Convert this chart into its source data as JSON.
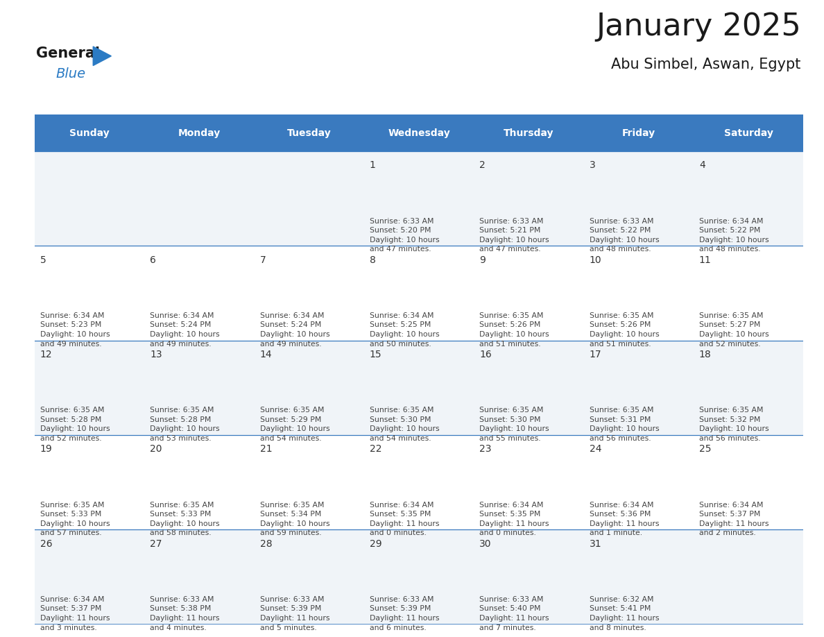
{
  "title": "January 2025",
  "subtitle": "Abu Simbel, Aswan, Egypt",
  "header_bg": "#3a7abf",
  "header_text": "#ffffff",
  "days_of_week": [
    "Sunday",
    "Monday",
    "Tuesday",
    "Wednesday",
    "Thursday",
    "Friday",
    "Saturday"
  ],
  "cell_bg_odd": "#f0f4f8",
  "cell_bg_even": "#ffffff",
  "border_color": "#3a7abf",
  "text_color": "#444444",
  "num_color": "#333333",
  "calendar": [
    [
      {
        "day": null,
        "info": null
      },
      {
        "day": null,
        "info": null
      },
      {
        "day": null,
        "info": null
      },
      {
        "day": 1,
        "info": "Sunrise: 6:33 AM\nSunset: 5:20 PM\nDaylight: 10 hours\nand 47 minutes."
      },
      {
        "day": 2,
        "info": "Sunrise: 6:33 AM\nSunset: 5:21 PM\nDaylight: 10 hours\nand 47 minutes."
      },
      {
        "day": 3,
        "info": "Sunrise: 6:33 AM\nSunset: 5:22 PM\nDaylight: 10 hours\nand 48 minutes."
      },
      {
        "day": 4,
        "info": "Sunrise: 6:34 AM\nSunset: 5:22 PM\nDaylight: 10 hours\nand 48 minutes."
      }
    ],
    [
      {
        "day": 5,
        "info": "Sunrise: 6:34 AM\nSunset: 5:23 PM\nDaylight: 10 hours\nand 49 minutes."
      },
      {
        "day": 6,
        "info": "Sunrise: 6:34 AM\nSunset: 5:24 PM\nDaylight: 10 hours\nand 49 minutes."
      },
      {
        "day": 7,
        "info": "Sunrise: 6:34 AM\nSunset: 5:24 PM\nDaylight: 10 hours\nand 49 minutes."
      },
      {
        "day": 8,
        "info": "Sunrise: 6:34 AM\nSunset: 5:25 PM\nDaylight: 10 hours\nand 50 minutes."
      },
      {
        "day": 9,
        "info": "Sunrise: 6:35 AM\nSunset: 5:26 PM\nDaylight: 10 hours\nand 51 minutes."
      },
      {
        "day": 10,
        "info": "Sunrise: 6:35 AM\nSunset: 5:26 PM\nDaylight: 10 hours\nand 51 minutes."
      },
      {
        "day": 11,
        "info": "Sunrise: 6:35 AM\nSunset: 5:27 PM\nDaylight: 10 hours\nand 52 minutes."
      }
    ],
    [
      {
        "day": 12,
        "info": "Sunrise: 6:35 AM\nSunset: 5:28 PM\nDaylight: 10 hours\nand 52 minutes."
      },
      {
        "day": 13,
        "info": "Sunrise: 6:35 AM\nSunset: 5:28 PM\nDaylight: 10 hours\nand 53 minutes."
      },
      {
        "day": 14,
        "info": "Sunrise: 6:35 AM\nSunset: 5:29 PM\nDaylight: 10 hours\nand 54 minutes."
      },
      {
        "day": 15,
        "info": "Sunrise: 6:35 AM\nSunset: 5:30 PM\nDaylight: 10 hours\nand 54 minutes."
      },
      {
        "day": 16,
        "info": "Sunrise: 6:35 AM\nSunset: 5:30 PM\nDaylight: 10 hours\nand 55 minutes."
      },
      {
        "day": 17,
        "info": "Sunrise: 6:35 AM\nSunset: 5:31 PM\nDaylight: 10 hours\nand 56 minutes."
      },
      {
        "day": 18,
        "info": "Sunrise: 6:35 AM\nSunset: 5:32 PM\nDaylight: 10 hours\nand 56 minutes."
      }
    ],
    [
      {
        "day": 19,
        "info": "Sunrise: 6:35 AM\nSunset: 5:33 PM\nDaylight: 10 hours\nand 57 minutes."
      },
      {
        "day": 20,
        "info": "Sunrise: 6:35 AM\nSunset: 5:33 PM\nDaylight: 10 hours\nand 58 minutes."
      },
      {
        "day": 21,
        "info": "Sunrise: 6:35 AM\nSunset: 5:34 PM\nDaylight: 10 hours\nand 59 minutes."
      },
      {
        "day": 22,
        "info": "Sunrise: 6:34 AM\nSunset: 5:35 PM\nDaylight: 11 hours\nand 0 minutes."
      },
      {
        "day": 23,
        "info": "Sunrise: 6:34 AM\nSunset: 5:35 PM\nDaylight: 11 hours\nand 0 minutes."
      },
      {
        "day": 24,
        "info": "Sunrise: 6:34 AM\nSunset: 5:36 PM\nDaylight: 11 hours\nand 1 minute."
      },
      {
        "day": 25,
        "info": "Sunrise: 6:34 AM\nSunset: 5:37 PM\nDaylight: 11 hours\nand 2 minutes."
      }
    ],
    [
      {
        "day": 26,
        "info": "Sunrise: 6:34 AM\nSunset: 5:37 PM\nDaylight: 11 hours\nand 3 minutes."
      },
      {
        "day": 27,
        "info": "Sunrise: 6:33 AM\nSunset: 5:38 PM\nDaylight: 11 hours\nand 4 minutes."
      },
      {
        "day": 28,
        "info": "Sunrise: 6:33 AM\nSunset: 5:39 PM\nDaylight: 11 hours\nand 5 minutes."
      },
      {
        "day": 29,
        "info": "Sunrise: 6:33 AM\nSunset: 5:39 PM\nDaylight: 11 hours\nand 6 minutes."
      },
      {
        "day": 30,
        "info": "Sunrise: 6:33 AM\nSunset: 5:40 PM\nDaylight: 11 hours\nand 7 minutes."
      },
      {
        "day": 31,
        "info": "Sunrise: 6:32 AM\nSunset: 5:41 PM\nDaylight: 11 hours\nand 8 minutes."
      },
      {
        "day": null,
        "info": null
      }
    ]
  ],
  "logo_general_color": "#1a1a1a",
  "logo_blue_color": "#2b7bc4",
  "logo_triangle_color": "#2b7bc4",
  "title_fontsize": 32,
  "subtitle_fontsize": 15,
  "header_fontsize": 10,
  "day_num_fontsize": 10,
  "info_fontsize": 7.8
}
